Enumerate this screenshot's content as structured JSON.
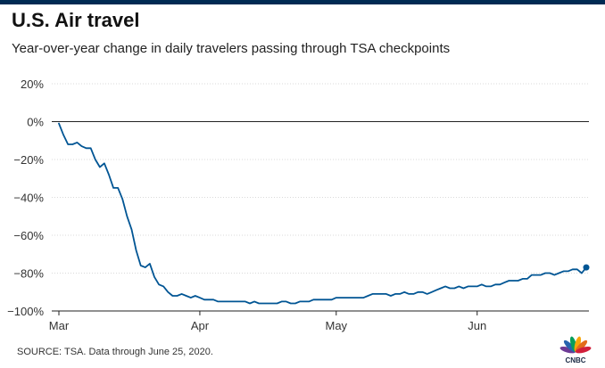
{
  "title": "U.S. Air travel",
  "subtitle": "Year-over-year change in daily travelers passing through TSA checkpoints",
  "source": "SOURCE: TSA. Data through June 25, 2020.",
  "logo_text": "CNBC",
  "colors": {
    "top_bar": "#002b53",
    "line": "#005594",
    "grid": "#d9d9d9",
    "zero_line": "#222222"
  },
  "chart_data": {
    "type": "line",
    "title": "U.S. Air travel",
    "subtitle": "Year-over-year change in daily travelers passing through TSA checkpoints",
    "xlabel": "",
    "ylabel": "",
    "ylim": [
      -100,
      20
    ],
    "yticks": [
      20,
      0,
      -20,
      -40,
      -60,
      -80,
      -100
    ],
    "ytick_labels": [
      "20%",
      "0%",
      "−20%",
      "−40%",
      "−60%",
      "−80%",
      "−100%"
    ],
    "xlim": [
      "2020-03-01",
      "2020-06-25"
    ],
    "xticks": [
      "2020-03-01",
      "2020-04-01",
      "2020-05-01",
      "2020-06-01"
    ],
    "xtick_labels": [
      "Mar",
      "Apr",
      "May",
      "Jun"
    ],
    "grid": true,
    "end_marker": true,
    "series": [
      {
        "x": [
          "2020-03-01",
          "2020-03-02",
          "2020-03-03",
          "2020-03-04",
          "2020-03-05",
          "2020-03-06",
          "2020-03-07",
          "2020-03-08",
          "2020-03-09",
          "2020-03-10",
          "2020-03-11",
          "2020-03-12",
          "2020-03-13",
          "2020-03-14",
          "2020-03-15",
          "2020-03-16",
          "2020-03-17",
          "2020-03-18",
          "2020-03-19",
          "2020-03-20",
          "2020-03-21",
          "2020-03-22",
          "2020-03-23",
          "2020-03-24",
          "2020-03-25",
          "2020-03-26",
          "2020-03-27",
          "2020-03-28",
          "2020-03-29",
          "2020-03-30",
          "2020-03-31",
          "2020-04-01",
          "2020-04-02",
          "2020-04-03",
          "2020-04-04",
          "2020-04-05",
          "2020-04-06",
          "2020-04-07",
          "2020-04-08",
          "2020-04-09",
          "2020-04-10",
          "2020-04-11",
          "2020-04-12",
          "2020-04-13",
          "2020-04-14",
          "2020-04-15",
          "2020-04-16",
          "2020-04-17",
          "2020-04-18",
          "2020-04-19",
          "2020-04-20",
          "2020-04-21",
          "2020-04-22",
          "2020-04-23",
          "2020-04-24",
          "2020-04-25",
          "2020-04-26",
          "2020-04-27",
          "2020-04-28",
          "2020-04-29",
          "2020-04-30",
          "2020-05-01",
          "2020-05-02",
          "2020-05-03",
          "2020-05-04",
          "2020-05-05",
          "2020-05-06",
          "2020-05-07",
          "2020-05-08",
          "2020-05-09",
          "2020-05-10",
          "2020-05-11",
          "2020-05-12",
          "2020-05-13",
          "2020-05-14",
          "2020-05-15",
          "2020-05-16",
          "2020-05-17",
          "2020-05-18",
          "2020-05-19",
          "2020-05-20",
          "2020-05-21",
          "2020-05-22",
          "2020-05-23",
          "2020-05-24",
          "2020-05-25",
          "2020-05-26",
          "2020-05-27",
          "2020-05-28",
          "2020-05-29",
          "2020-05-30",
          "2020-05-31",
          "2020-06-01",
          "2020-06-02",
          "2020-06-03",
          "2020-06-04",
          "2020-06-05",
          "2020-06-06",
          "2020-06-07",
          "2020-06-08",
          "2020-06-09",
          "2020-06-10",
          "2020-06-11",
          "2020-06-12",
          "2020-06-13",
          "2020-06-14",
          "2020-06-15",
          "2020-06-16",
          "2020-06-17",
          "2020-06-18",
          "2020-06-19",
          "2020-06-20",
          "2020-06-21",
          "2020-06-22",
          "2020-06-23",
          "2020-06-24",
          "2020-06-25"
        ],
        "y": [
          -1,
          -7,
          -12,
          -12,
          -11,
          -13,
          -14,
          -14,
          -20,
          -24,
          -22,
          -28,
          -35,
          -35,
          -41,
          -50,
          -57,
          -68,
          -76,
          -77,
          -75,
          -82,
          -86,
          -87,
          -90,
          -92,
          -92,
          -91,
          -92,
          -93,
          -92,
          -93,
          -94,
          -94,
          -94,
          -95,
          -95,
          -95,
          -95,
          -95,
          -95,
          -95,
          -96,
          -95,
          -96,
          -96,
          -96,
          -96,
          -96,
          -95,
          -95,
          -96,
          -96,
          -95,
          -95,
          -95,
          -94,
          -94,
          -94,
          -94,
          -94,
          -93,
          -93,
          -93,
          -93,
          -93,
          -93,
          -93,
          -92,
          -91,
          -91,
          -91,
          -91,
          -92,
          -91,
          -91,
          -90,
          -91,
          -91,
          -90,
          -90,
          -91,
          -90,
          -89,
          -88,
          -87,
          -88,
          -88,
          -87,
          -88,
          -87,
          -87,
          -87,
          -86,
          -87,
          -87,
          -86,
          -86,
          -85,
          -84,
          -84,
          -84,
          -83,
          -83,
          -81,
          -81,
          -81,
          -80,
          -80,
          -81,
          -80,
          -79,
          -79,
          -78,
          -78,
          -80,
          -77
        ]
      }
    ]
  }
}
